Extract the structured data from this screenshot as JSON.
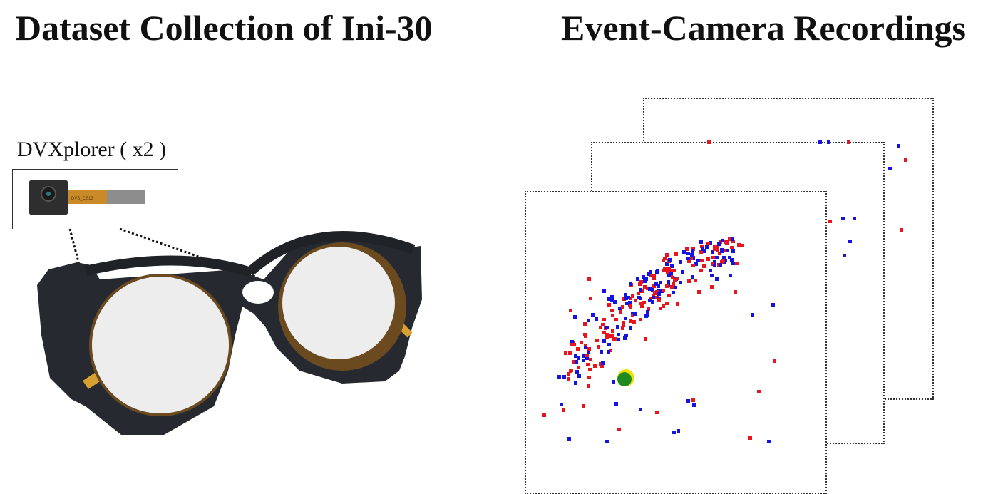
{
  "titles": {
    "left": "Dataset Collection of Ini-30",
    "right": "Event-Camera Recordings"
  },
  "sensor_label": "DVXplorer ( x2 )",
  "colors": {
    "positive_events": "#e8141e",
    "negative_events": "#1414e0",
    "pupil_marker": "#1f8a1f",
    "pupil_marker_ring": "#f0e000",
    "frame_color": "#ebebeb",
    "lens_color": "#eeedee",
    "ribbon_color": "#c98a2a"
  }
}
